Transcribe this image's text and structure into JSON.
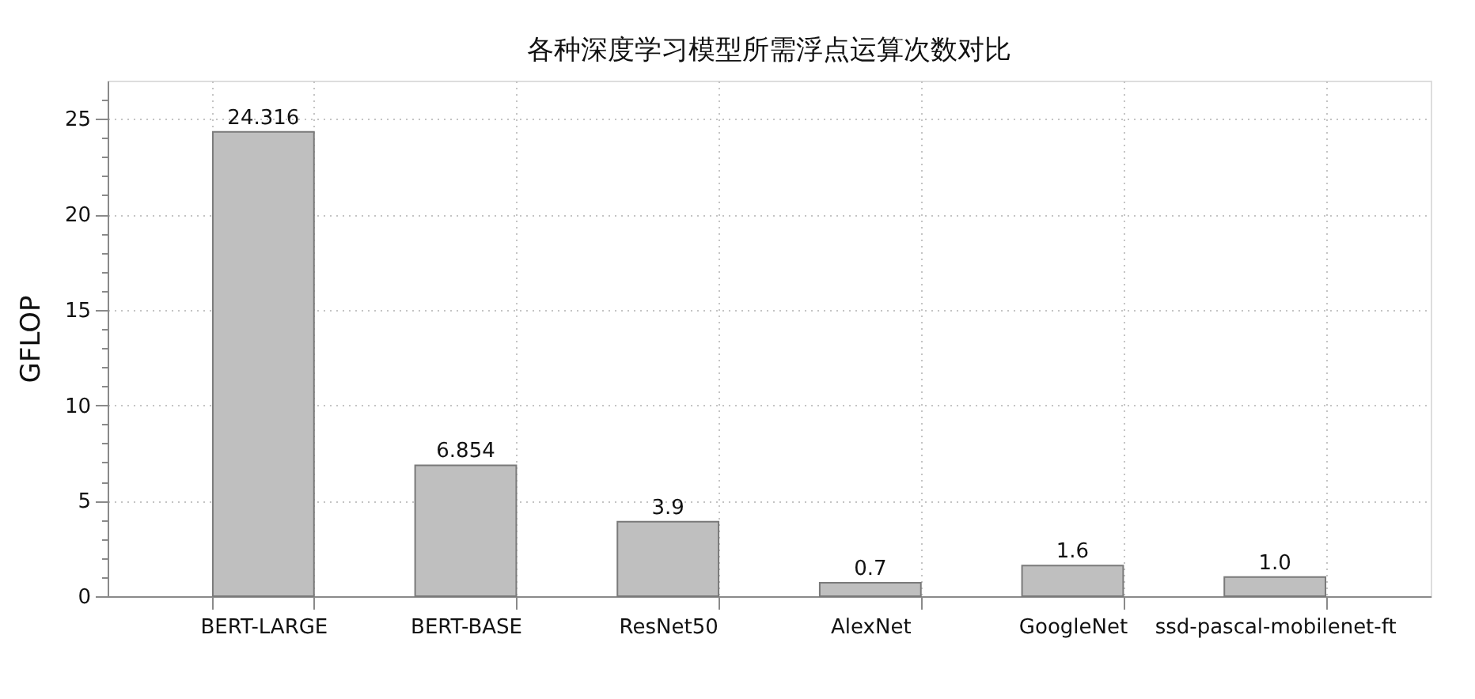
{
  "chart_data": {
    "type": "bar",
    "title": "各种深度学习模型所需浮点运算次数对比",
    "ylabel": "GFLOP",
    "categories": [
      "BERT-LARGE",
      "BERT-BASE",
      "ResNet50",
      "AlexNet",
      "GoogleNet",
      "ssd-pascal-mobilenet-ft"
    ],
    "values": [
      24.316,
      6.854,
      3.9,
      0.7,
      1.6,
      1.0
    ],
    "value_labels": [
      "24.316",
      "6.854",
      "3.9",
      "0.7",
      "1.6",
      "1.0"
    ],
    "color": "#bfbfbf",
    "ylim": [
      0,
      27
    ],
    "yticks": [
      0,
      {
        "value": 1,
        "label": null
      },
      {
        "value": 2,
        "label": null
      },
      {
        "value": 3,
        "label": null
      },
      {
        "value": 4,
        "label": null
      },
      5,
      {
        "value": 6,
        "label": null
      },
      {
        "value": 7,
        "label": null
      },
      {
        "value": 8,
        "label": null
      },
      {
        "value": 9,
        "label": null
      },
      10,
      {
        "value": 11,
        "label": null
      },
      {
        "value": 12,
        "label": null
      },
      {
        "value": 13,
        "label": null
      },
      {
        "value": 14,
        "label": null
      },
      15,
      {
        "value": 16,
        "label": null
      },
      {
        "value": 17,
        "label": null
      },
      {
        "value": 18,
        "label": null
      },
      {
        "value": 19,
        "label": null
      },
      20,
      {
        "value": 21,
        "label": null
      },
      {
        "value": 22,
        "label": null
      },
      {
        "value": 23,
        "label": null
      },
      {
        "value": 24,
        "label": null
      },
      25,
      {
        "value": 26,
        "label": null
      }
    ],
    "grid": true
  }
}
